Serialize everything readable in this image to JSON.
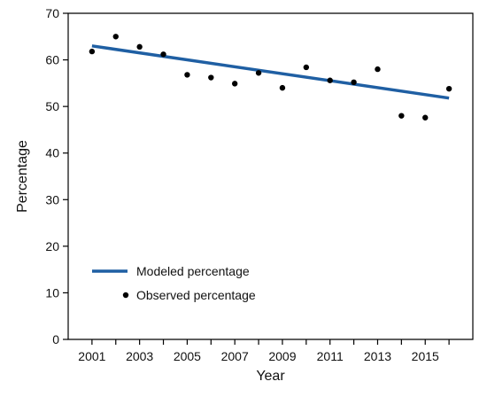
{
  "chart_data": {
    "type": "scatter",
    "xlabel": "Year",
    "ylabel": "Percentage",
    "xlim": [
      2000,
      2017
    ],
    "ylim": [
      0,
      70
    ],
    "xticks": [
      2001,
      2003,
      2005,
      2007,
      2009,
      2011,
      2013,
      2015
    ],
    "yticks": [
      0,
      10,
      20,
      30,
      40,
      50,
      60,
      70
    ],
    "grid": false,
    "legend_position": "bottom-left",
    "series": [
      {
        "name": "Modeled percentage",
        "type": "line",
        "color": "#1f5fa3",
        "x": [
          2001,
          2016
        ],
        "y": [
          63.0,
          51.8
        ]
      },
      {
        "name": "Observed percentage",
        "type": "scatter",
        "color": "#000000",
        "x": [
          2001,
          2002,
          2003,
          2004,
          2005,
          2006,
          2007,
          2008,
          2009,
          2010,
          2011,
          2012,
          2013,
          2014,
          2015,
          2016
        ],
        "y": [
          61.8,
          65.0,
          62.8,
          61.2,
          56.8,
          56.2,
          54.9,
          57.2,
          54.0,
          58.4,
          55.6,
          55.2,
          58.0,
          48.0,
          47.6,
          53.8
        ]
      }
    ]
  }
}
